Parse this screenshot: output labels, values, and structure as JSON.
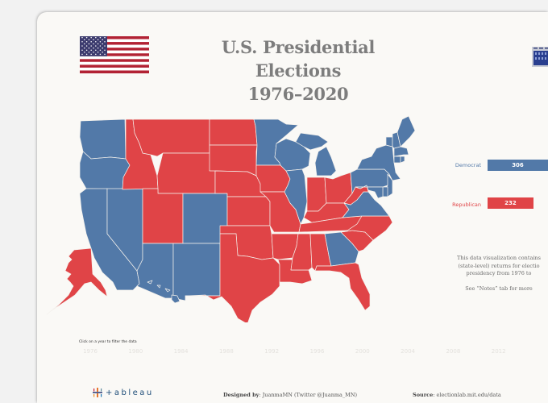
{
  "header": {
    "title_line1": "U.S. Presidential Elections",
    "title_line2": "1976–2020",
    "flag_icon": "us-flag-icon",
    "right_icon": "white-house-icon"
  },
  "colors": {
    "democrat": "#5279a8",
    "republican": "#e04447",
    "background": "#faf9f6",
    "outer": "#f2f2f2"
  },
  "map": {
    "selected_year": "2020",
    "winners": {
      "WA": "D",
      "OR": "D",
      "CA": "D",
      "NV": "D",
      "ID": "R",
      "MT": "R",
      "WY": "R",
      "UT": "R",
      "AZ": "D",
      "CO": "D",
      "NM": "D",
      "ND": "R",
      "SD": "R",
      "NE": "R",
      "KS": "R",
      "OK": "R",
      "TX": "R",
      "MN": "D",
      "IA": "R",
      "MO": "R",
      "AR": "R",
      "LA": "R",
      "WI": "D",
      "IL": "D",
      "MI": "D",
      "IN": "R",
      "OH": "R",
      "KY": "R",
      "TN": "R",
      "MS": "R",
      "AL": "R",
      "GA": "D",
      "FL": "R",
      "SC": "R",
      "NC": "R",
      "VA": "D",
      "WV": "R",
      "PA": "D",
      "NY": "D",
      "VT": "D",
      "NH": "D",
      "ME": "D",
      "MA": "D",
      "CT": "D",
      "RI": "D",
      "NJ": "D",
      "DE": "D",
      "MD": "D",
      "AK": "R",
      "HI": "D"
    }
  },
  "results": {
    "rows": [
      {
        "party": "Democrat",
        "electoral_votes": "306",
        "value": 306
      },
      {
        "party": "Republican",
        "electoral_votes": "232",
        "value": 232
      }
    ],
    "max_value": 306
  },
  "notes": {
    "line1": "This data visualization contains",
    "line2": "(state-level) returns for electio",
    "line3": "presidency from 1976 to",
    "line4": "See “Notes” tab for more"
  },
  "timeline": {
    "hint": "Click on a year to filter the data",
    "years": [
      "1976",
      "1980",
      "1984",
      "1988",
      "1992",
      "1996",
      "2000",
      "2004",
      "2008",
      "2012"
    ]
  },
  "footer": {
    "logo_text": "+ableau",
    "designed_by_label": "Designed by",
    "designed_by_value": ": JuanmaMN (Twitter @Juanma_MN)",
    "source_label": "Source",
    "source_value": ": electionlab.mit.edu/data"
  }
}
